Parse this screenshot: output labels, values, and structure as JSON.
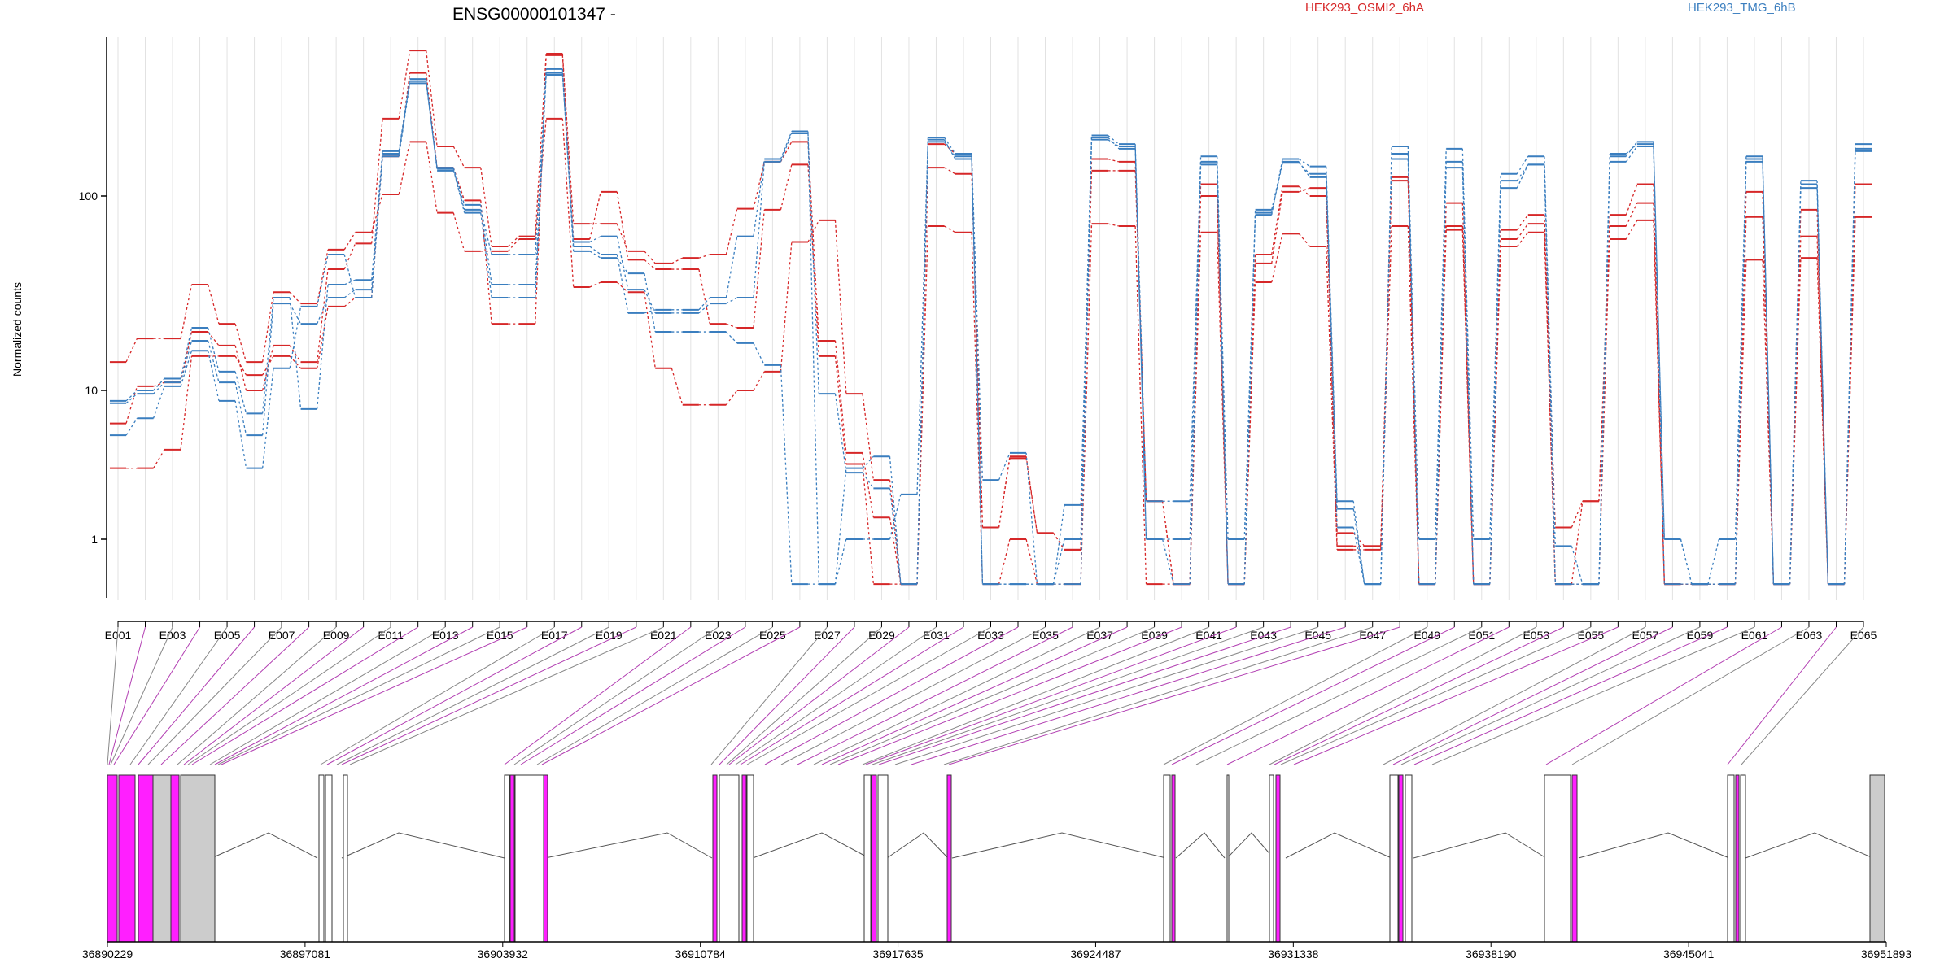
{
  "chart_data": {
    "type": "line",
    "title": "ENSG00000101347 -",
    "ylabel": "Normalized counts",
    "yscale": "log",
    "ylim": [
      0.5,
      800
    ],
    "yticks": [
      1,
      10,
      100
    ],
    "ytick_labels": [
      "1",
      "10",
      "100"
    ],
    "grid": "vertical lines at each exon bin",
    "exon_bins": [
      "E001",
      "E002",
      "E003",
      "E004",
      "E005",
      "E006",
      "E007",
      "E008",
      "E009",
      "E010",
      "E011",
      "E012",
      "E013",
      "E014",
      "E015",
      "E016",
      "E017",
      "E018",
      "E019",
      "E020",
      "E021",
      "E022",
      "E023",
      "E024",
      "E025",
      "E026",
      "E027",
      "E028",
      "E029",
      "E030",
      "E031",
      "E032",
      "E033",
      "E034",
      "E035",
      "E036",
      "E037",
      "E038",
      "E039",
      "E040",
      "E041",
      "E042",
      "E043",
      "E044",
      "E045",
      "E046",
      "E047",
      "E048",
      "E049",
      "E050",
      "E051",
      "E052",
      "E053",
      "E054",
      "E055",
      "E056",
      "E057",
      "E058",
      "E059",
      "E060",
      "E061",
      "E062",
      "E063",
      "E064",
      "E065"
    ],
    "shown_bin_labels": [
      "E001",
      "E003",
      "E005",
      "E007",
      "E009",
      "E011",
      "E013",
      "E015",
      "E017",
      "E019",
      "E021",
      "E023",
      "E025",
      "E027",
      "E029",
      "E031",
      "E033",
      "E035",
      "E037",
      "E039",
      "E041",
      "E043",
      "E045",
      "E047",
      "E049",
      "E051",
      "E053",
      "E055",
      "E057",
      "E059",
      "E061",
      "E063",
      "E065"
    ],
    "legend": [
      {
        "label": "HEK293_OSMI2_6hA",
        "color": "#d62728"
      },
      {
        "label": "HEK293_TMG_6hB",
        "color": "#3a7ebf"
      }
    ],
    "series": [
      {
        "group": "HEK293_OSMI2_6hA",
        "color": "#d62728",
        "values": [
          14,
          18.5,
          18.5,
          35,
          22,
          14,
          32,
          28,
          53,
          65,
          102,
          190,
          82,
          52,
          52,
          60,
          250,
          34,
          36,
          32,
          13,
          8,
          8,
          10,
          12.5,
          58,
          75,
          9.5,
          2.5,
          0.5,
          185,
          165,
          1.2,
          3.6,
          1.1,
          0.85,
          155,
          150,
          1.8,
          0.5,
          100,
          0.5,
          36,
          64,
          55,
          0.85,
          0.85,
          70,
          0.5,
          67,
          0.5,
          55,
          65,
          0.5,
          1.8,
          60,
          75,
          0.5,
          0.5,
          0.5,
          47,
          0.5,
          48,
          0.5,
          78
        ]
      },
      {
        "group": "HEK293_OSMI2_6hA",
        "color": "#d62728",
        "values": [
          6,
          10.5,
          11,
          20,
          17,
          10,
          17,
          14,
          42,
          57,
          250,
          560,
          180,
          140,
          55,
          62,
          540,
          72,
          72,
          52,
          45,
          48,
          50,
          86,
          150,
          190,
          18,
          3.8,
          1.4,
          0.5,
          140,
          130,
          1.2,
          3.5,
          1.1,
          0.85,
          135,
          135,
          1.8,
          0.5,
          115,
          0.5,
          45,
          105,
          110,
          1.1,
          0.9,
          120,
          0.5,
          92,
          0.5,
          67,
          80,
          1.2,
          1.8,
          80,
          115,
          0.5,
          0.5,
          0.5,
          105,
          0.5,
          85,
          0.5,
          115
        ]
      },
      {
        "group": "HEK293_OSMI2_6hA",
        "color": "#d62728",
        "values": [
          3,
          3,
          4,
          15,
          15,
          12,
          15,
          13,
          27,
          30,
          160,
          430,
          140,
          95,
          22,
          22,
          530,
          60,
          105,
          47,
          42,
          42,
          22,
          21,
          85,
          145,
          15,
          3.2,
          0.5,
          0.5,
          70,
          65,
          0.5,
          1,
          0.5,
          0.5,
          72,
          70,
          0.5,
          0.5,
          65,
          0.5,
          50,
          112,
          100,
          0.9,
          0.9,
          125,
          0.5,
          70,
          0.5,
          60,
          72,
          0.5,
          0.5,
          70,
          92,
          0.5,
          0.5,
          0.5,
          78,
          0.5,
          62,
          0.5,
          78
        ]
      },
      {
        "group": "HEK293_TMG_6hB",
        "color": "#3a7ebf",
        "values": [
          8.5,
          10,
          11.5,
          21,
          12.5,
          7,
          30,
          7.5,
          35,
          37,
          170,
          400,
          135,
          85,
          50,
          50,
          430,
          55,
          50,
          25,
          26,
          26,
          30,
          62,
          155,
          215,
          0.5,
          3,
          3.6,
          0.5,
          200,
          165,
          2.5,
          3.8,
          0.5,
          1.7,
          205,
          185,
          1.8,
          1.8,
          160,
          1,
          80,
          155,
          142,
          1.8,
          0.5,
          180,
          1,
          175,
          1,
          130,
          160,
          0.9,
          0.5,
          165,
          185,
          1,
          0.5,
          1,
          160,
          0.5,
          120,
          0.5,
          185
        ]
      },
      {
        "group": "HEK293_TMG_6hB",
        "color": "#3a7ebf",
        "values": [
          5,
          6.5,
          10.5,
          16,
          8.5,
          3,
          13,
          27,
          50,
          30,
          160,
          380,
          140,
          90,
          35,
          35,
          450,
          52,
          48,
          40,
          20,
          20,
          20,
          17.5,
          13.5,
          0.5,
          0.5,
          1,
          1,
          2,
          195,
          155,
          0.5,
          0.5,
          0.5,
          0.5,
          200,
          175,
          1,
          1,
          150,
          0.5,
          85,
          150,
          125,
          1.2,
          0.5,
          165,
          0.5,
          150,
          0.5,
          120,
          145,
          0.5,
          0.5,
          160,
          190,
          1,
          0.5,
          0.5,
          155,
          0.5,
          115,
          0.5,
          175
        ]
      },
      {
        "group": "HEK293_TMG_6hB",
        "color": "#3a7ebf",
        "values": [
          8.2,
          9.5,
          11,
          18,
          11,
          5,
          28,
          22,
          30,
          33,
          165,
          390,
          138,
          82,
          30,
          30,
          420,
          58,
          62,
          33,
          25,
          25,
          28,
          30,
          150,
          210,
          9.5,
          2.8,
          2.2,
          0.5,
          190,
          160,
          0.5,
          0.5,
          0.5,
          1,
          195,
          180,
          1,
          0.5,
          145,
          0.5,
          82,
          148,
          130,
          1.6,
          0.5,
          155,
          0.5,
          140,
          0.5,
          110,
          145,
          0.5,
          0.5,
          150,
          180,
          0.5,
          0.5,
          0.5,
          150,
          0.5,
          110,
          0.5,
          170
        ]
      }
    ],
    "genomic_axis": {
      "tick_labels": [
        "36890229",
        "36897081",
        "36903932",
        "36910784",
        "36917635",
        "36924487",
        "36931338",
        "36938190",
        "36945041",
        "36951893"
      ]
    }
  }
}
